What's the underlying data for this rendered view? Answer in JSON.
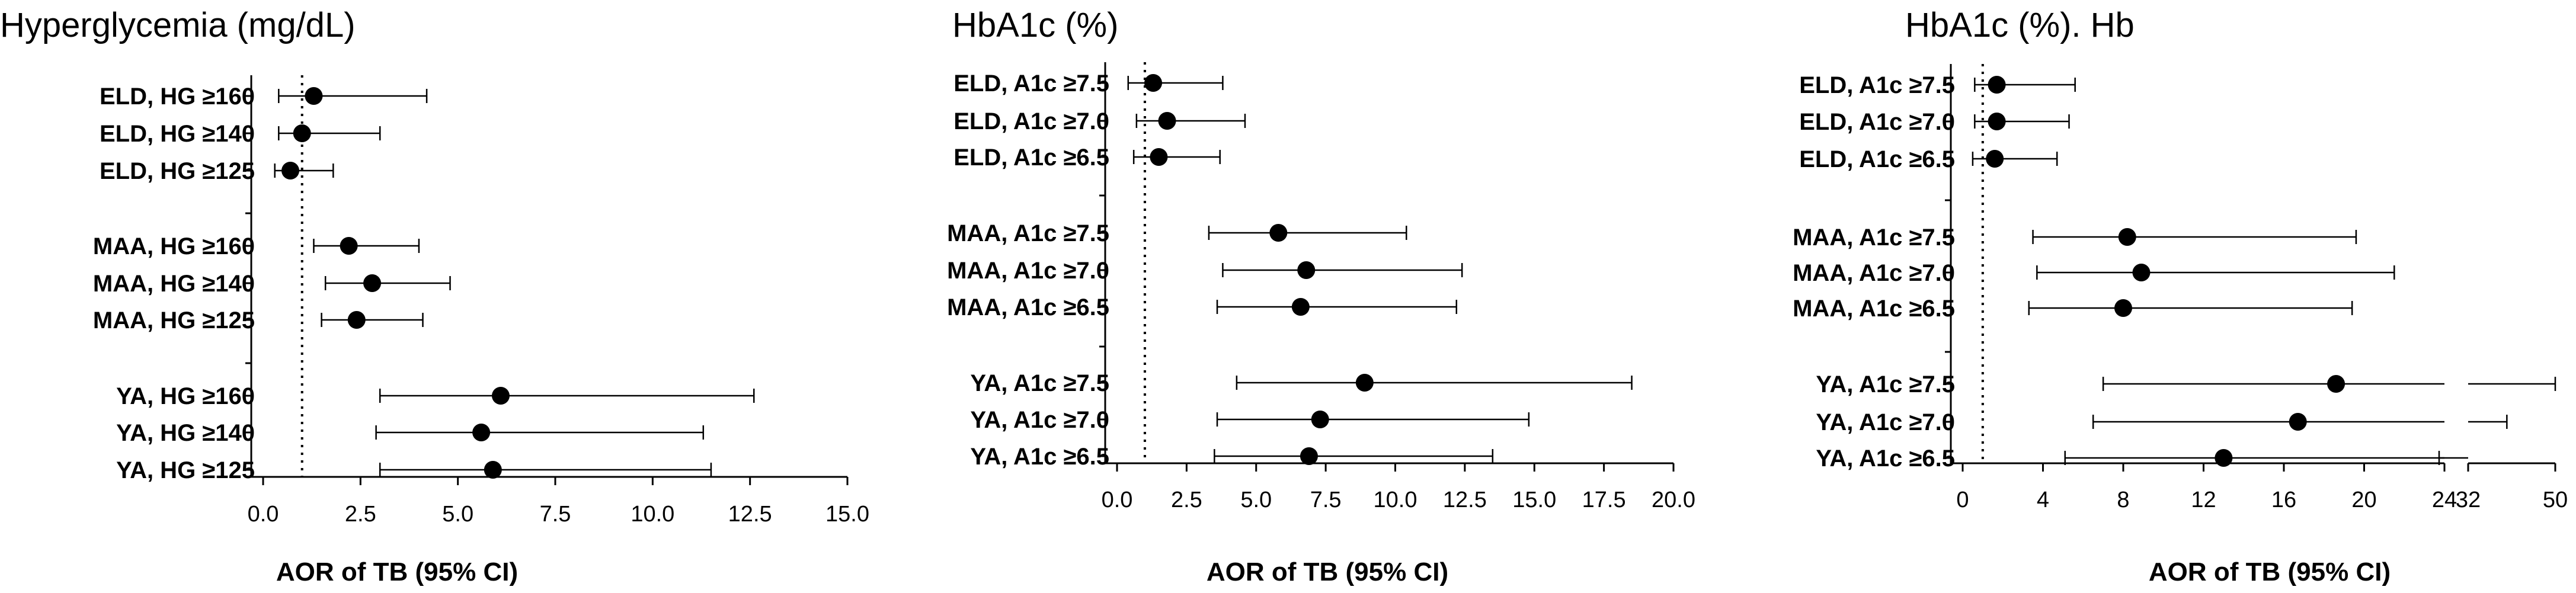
{
  "chart_data": [
    {
      "type": "forest",
      "title": "Hyperglycemia  (mg/dL)",
      "xlabel": "AOR of TB (95% CI)",
      "xlim": [
        0,
        15
      ],
      "xticks": [
        "0.0",
        "2.5",
        "5.0",
        "7.5",
        "10.0",
        "12.5",
        "15.0"
      ],
      "reference_line": 1,
      "categories": [
        "ELD, HG ≥160",
        "ELD, HG ≥140",
        "ELD, HG ≥125",
        "MAA, HG ≥160",
        "MAA, HG ≥140",
        "MAA, HG ≥125",
        "YA, HG ≥160",
        "YA, HG ≥140",
        "YA, HG ≥125"
      ],
      "aor": [
        1.3,
        1.0,
        0.7,
        2.2,
        2.8,
        2.4,
        6.1,
        5.6,
        5.9
      ],
      "lower": [
        0.4,
        0.4,
        0.3,
        1.3,
        1.6,
        1.5,
        3.0,
        2.9,
        3.0
      ],
      "upper": [
        4.2,
        3.0,
        1.8,
        4.0,
        4.8,
        4.1,
        12.6,
        11.3,
        11.5
      ]
    },
    {
      "type": "forest",
      "title": "HbA1c  (%)",
      "xlabel": "AOR of TB (95% CI)",
      "xlim": [
        0,
        20
      ],
      "xticks": [
        "0.0",
        "2.5",
        "5.0",
        "7.5",
        "10.0",
        "12.5",
        "15.0",
        "17.5",
        "20.0"
      ],
      "reference_line": 1,
      "categories": [
        "ELD, A1c ≥7.5",
        "ELD, A1c ≥7.0",
        "ELD, A1c ≥6.5",
        "MAA, A1c ≥7.5",
        "MAA, A1c ≥7.0",
        "MAA, A1c ≥6.5",
        "YA, A1c ≥7.5",
        "YA, A1c ≥7.0",
        "YA, A1c ≥6.5"
      ],
      "aor": [
        1.3,
        1.8,
        1.5,
        5.8,
        6.8,
        6.6,
        8.9,
        7.3,
        6.9
      ],
      "lower": [
        0.4,
        0.7,
        0.6,
        3.3,
        3.8,
        3.6,
        4.3,
        3.6,
        3.5
      ],
      "upper": [
        3.8,
        4.6,
        3.7,
        10.4,
        12.4,
        12.2,
        18.5,
        14.8,
        13.5
      ]
    },
    {
      "type": "forest",
      "title": "HbA1c  (%). Hb",
      "xlabel": "AOR of TB (95% CI)",
      "xlim": [
        0,
        50
      ],
      "axis_break": [
        24,
        32
      ],
      "xticks": [
        "0",
        "4",
        "8",
        "12",
        "16",
        "20",
        "24",
        "32",
        "50"
      ],
      "reference_line": 1,
      "categories": [
        "ELD, A1c ≥7.5",
        "ELD, A1c ≥7.0",
        "ELD, A1c ≥6.5",
        "MAA, A1c ≥7.5",
        "MAA, A1c ≥7.0",
        "MAA, A1c ≥6.5",
        "YA, A1c ≥7.5",
        "YA, A1c ≥7.0",
        "YA, A1c ≥6.5"
      ],
      "aor": [
        1.7,
        1.7,
        1.6,
        8.2,
        8.9,
        8.0,
        18.6,
        16.7,
        13.0
      ],
      "lower": [
        0.6,
        0.6,
        0.5,
        3.5,
        3.7,
        3.3,
        7.0,
        6.5,
        5.1
      ],
      "upper": [
        5.6,
        5.3,
        4.7,
        19.6,
        21.5,
        19.4,
        50,
        40,
        26
      ]
    }
  ]
}
